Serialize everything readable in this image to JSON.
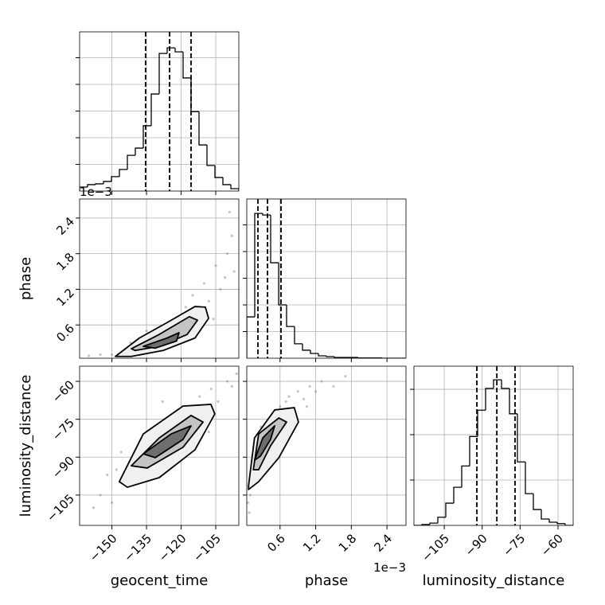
{
  "chart_data": [
    {
      "type": "histogram",
      "color": "#000000",
      "grid": true,
      "bins": [
        -164,
        -160.55,
        -157.1,
        -153.65,
        -150.2,
        -146.75,
        -143.3,
        -139.85,
        -136.4,
        -132.95,
        -129.5,
        -126.05,
        -122.6,
        -119.15,
        -115.7,
        -112.25,
        -108.8,
        -105.35,
        -101.9,
        -98.45,
        -95
      ],
      "values": [
        15,
        24,
        27,
        36,
        54,
        81,
        134,
        161,
        245,
        364,
        516,
        537,
        522,
        424,
        298,
        173,
        96,
        51,
        24,
        9
      ],
      "quantiles": [
        -135.4,
        -125.0,
        -115.7
      ],
      "xlim": [
        -164,
        -95
      ],
      "ylim": [
        0,
        597
      ],
      "xticks": [
        -150,
        -135,
        -120,
        -105
      ],
      "yticks": [
        100,
        200,
        300,
        400,
        500
      ]
    },
    {
      "type": "density",
      "grid": true,
      "point_color": "#7f7f7f",
      "contour_colors": [
        "#f0f0f0",
        "#c4c4c4",
        "#6e6e6e"
      ],
      "ylabel": "phase",
      "y_offset_label": "1e−3",
      "x": [
        -150,
        -145,
        -140,
        -138,
        -133,
        -130,
        -128,
        -125,
        -122,
        -120,
        -118,
        -115,
        -112,
        -110,
        -108,
        -105,
        -103,
        -100,
        -98,
        -97,
        -155,
        -160,
        -142,
        -126,
        -117,
        -113,
        -106,
        -101,
        -99,
        -135
      ],
      "y": [
        0.1,
        0.15,
        0.2,
        0.1,
        0.35,
        0.3,
        0.5,
        0.45,
        0.7,
        0.6,
        0.9,
        1.1,
        0.8,
        1.3,
        1.0,
        1.6,
        1.2,
        1.8,
        2.1,
        1.5,
        0.1,
        0.08,
        0.3,
        0.25,
        0.5,
        0.6,
        0.7,
        1.4,
        2.5,
        0.5
      ],
      "contours": [
        {
          "x": [
            -148.5,
            -138.1,
            -126.1,
            -114.0,
            -109.5,
            -108.1,
            -114.0,
            -127.8,
            -141.6
          ],
          "y": [
            0.07,
            0.38,
            0.64,
            0.91,
            0.9,
            0.71,
            0.38,
            0.17,
            0.07
          ]
        },
        {
          "x": [
            -141.6,
            -129.5,
            -116.4,
            -112.9,
            -117.4,
            -129.5,
            -139.9
          ],
          "y": [
            0.2,
            0.44,
            0.74,
            0.68,
            0.44,
            0.24,
            0.17
          ]
        },
        {
          "x": [
            -136.4,
            -126.1,
            -120.9,
            -122.0,
            -131.2
          ],
          "y": [
            0.24,
            0.38,
            0.47,
            0.33,
            0.21
          ]
        }
      ],
      "xlim": [
        -164,
        -95
      ],
      "ylim": [
        0.04,
        2.72
      ],
      "xticks": [
        -150,
        -135,
        -120,
        -105
      ],
      "yticks": [
        0.6,
        1.2,
        1.8,
        2.4
      ]
    },
    {
      "type": "histogram",
      "color": "#000000",
      "grid": true,
      "bins": [
        0.04,
        0.174,
        0.308,
        0.442,
        0.576,
        0.71,
        0.844,
        0.978,
        1.112,
        1.246,
        1.38,
        1.514,
        1.648,
        1.782,
        1.916,
        2.05,
        2.184,
        2.318,
        2.452,
        2.586,
        2.72
      ],
      "values": [
        155,
        543,
        537,
        358,
        200,
        119,
        54,
        30,
        18,
        9,
        6,
        3,
        3,
        3,
        1,
        1,
        1,
        0,
        0,
        0
      ],
      "quantiles": [
        0.228,
        0.389,
        0.616
      ],
      "xlim": [
        0.04,
        2.72
      ],
      "ylim": [
        0,
        597
      ],
      "xticks": [
        0.6,
        1.2,
        1.8,
        2.4
      ],
      "yticks": [
        100,
        200,
        300,
        400,
        500
      ]
    },
    {
      "type": "density",
      "grid": true,
      "point_color": "#7f7f7f",
      "contour_colors": [
        "#f0f0f0",
        "#c4c4c4",
        "#6e6e6e"
      ],
      "xlabel": "geocent_time",
      "ylabel": "luminosity_distance",
      "x": [
        -155,
        -150,
        -148,
        -145,
        -142,
        -140,
        -138,
        -135,
        -132,
        -130,
        -127,
        -125,
        -122,
        -120,
        -117,
        -115,
        -112,
        -110,
        -107,
        -104,
        -100,
        -98,
        -158,
        -146,
        -134,
        -118,
        -108,
        -128,
        -96,
        -152
      ],
      "y": [
        -105,
        -108,
        -95,
        -100,
        -92,
        -97,
        -85,
        -90,
        -80,
        -88,
        -78,
        -84,
        -72,
        -80,
        -70,
        -76,
        -66,
        -72,
        -63,
        -68,
        -60,
        -62,
        -110,
        -88,
        -98,
        -88,
        -80,
        -68,
        -57,
        -97
      ],
      "contours": [
        {
          "x": [
            -146.8,
            -136.4,
            -119.2,
            -107.1,
            -105.4,
            -114.0,
            -129.5,
            -143.3
          ],
          "y": [
            -99.7,
            -80.8,
            -69.8,
            -69.1,
            -72.9,
            -87.1,
            -98.1,
            -101.9
          ]
        },
        {
          "x": [
            -141.6,
            -129.5,
            -115.7,
            -110.5,
            -119.2,
            -134.7
          ],
          "y": [
            -93.4,
            -82.4,
            -73.5,
            -76.1,
            -86.1,
            -94.3
          ]
        },
        {
          "x": [
            -136.4,
            -124.3,
            -115.7,
            -119.2,
            -131.2
          ],
          "y": [
            -88.7,
            -80.8,
            -77.6,
            -83.0,
            -90.2
          ]
        }
      ],
      "xlim": [
        -164,
        -95
      ],
      "ylim": [
        -117,
        -54
      ],
      "xticks": [
        {
          "value": -150,
          "label": "−150"
        },
        {
          "value": -135,
          "label": "−135"
        },
        {
          "value": -120,
          "label": "−120"
        },
        {
          "value": -105,
          "label": "−105"
        }
      ],
      "yticks": [
        {
          "value": -105,
          "label": "−105"
        },
        {
          "value": -90,
          "label": "−90"
        },
        {
          "value": -75,
          "label": "−75"
        },
        {
          "value": -60,
          "label": "−60"
        }
      ]
    },
    {
      "type": "density",
      "grid": true,
      "point_color": "#7f7f7f",
      "contour_colors": [
        "#f0f0f0",
        "#c4c4c4",
        "#6e6e6e"
      ],
      "xlabel": "phase",
      "x_offset_label": "1e−3",
      "x": [
        0.08,
        0.1,
        0.12,
        0.15,
        0.2,
        0.25,
        0.3,
        0.35,
        0.4,
        0.45,
        0.5,
        0.55,
        0.6,
        0.65,
        0.7,
        0.75,
        0.8,
        0.9,
        1.0,
        1.1,
        1.2,
        1.3,
        1.5,
        0.06,
        0.18,
        0.28,
        0.38,
        0.85,
        1.05,
        1.7
      ],
      "y": [
        -112,
        -105,
        -100,
        -92,
        -96,
        -85,
        -88,
        -80,
        -83,
        -75,
        -78,
        -72,
        -70,
        -74,
        -68,
        -66,
        -71,
        -64,
        -67,
        -62,
        -64,
        -60,
        -62,
        -108,
        -88,
        -78,
        -90,
        -75,
        -70,
        -58
      ],
      "contours": [
        {
          "x": [
            0.07,
            0.17,
            0.51,
            0.84,
            0.91,
            0.58,
            0.24,
            0.07
          ],
          "y": [
            -101.3,
            -82.4,
            -71.3,
            -70.4,
            -76.1,
            -90.2,
            -99.7,
            -102.8
          ]
        },
        {
          "x": [
            0.15,
            0.24,
            0.58,
            0.71,
            0.44,
            0.24
          ],
          "y": [
            -95.0,
            -80.8,
            -74.5,
            -76.1,
            -85.5,
            -95.0
          ]
        },
        {
          "x": [
            0.17,
            0.31,
            0.51,
            0.44,
            0.27
          ],
          "y": [
            -91.2,
            -82.4,
            -77.6,
            -83.0,
            -89.6
          ]
        }
      ],
      "xlim": [
        0.04,
        2.72
      ],
      "ylim": [
        -117,
        -54
      ],
      "xticks": [
        0.6,
        1.2,
        1.8,
        2.4
      ],
      "yticks": [
        -105,
        -90,
        -75,
        -60
      ]
    },
    {
      "type": "histogram",
      "color": "#000000",
      "grid": true,
      "xlabel": "luminosity_distance",
      "bins": [
        -117,
        -113.85,
        -110.7,
        -107.55,
        -104.4,
        -101.25,
        -98.1,
        -94.95,
        -91.8,
        -88.65,
        -85.5,
        -82.35,
        -79.2,
        -76.05,
        -72.9,
        -69.75,
        -66.6,
        -63.45,
        -60.3,
        -57.15,
        -54
      ],
      "values": [
        0,
        2,
        5,
        18,
        49,
        84,
        131,
        196,
        254,
        302,
        321,
        302,
        246,
        140,
        70,
        35,
        14,
        7,
        4,
        0
      ],
      "quantiles": [
        -92.1,
        -84.2,
        -77.0
      ],
      "xlim": [
        -117,
        -54
      ],
      "ylim": [
        0,
        351
      ],
      "xticks": [
        {
          "value": -105,
          "label": "−105"
        },
        {
          "value": -90,
          "label": "−90"
        },
        {
          "value": -75,
          "label": "−75"
        },
        {
          "value": -60,
          "label": "−60"
        }
      ],
      "yticks": [
        100,
        200,
        300
      ]
    }
  ]
}
